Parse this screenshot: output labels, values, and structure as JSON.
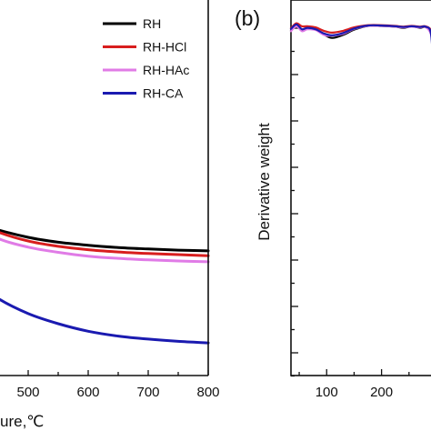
{
  "chart_data": [
    {
      "type": "line",
      "panel_label": "",
      "xlabel": "ure,℃",
      "ylabel": "",
      "xlim": [
        370,
        800
      ],
      "x_ticks": [
        500,
        600,
        700,
        800
      ],
      "legend_position": "top-right",
      "series": [
        {
          "name": "RH",
          "color": "#000000",
          "x": [
            370,
            400,
            450,
            500,
            550,
            600,
            650,
            700,
            750,
            800
          ],
          "y": [
            0.58,
            0.585,
            0.612,
            0.632,
            0.645,
            0.653,
            0.659,
            0.663,
            0.666,
            0.668
          ]
        },
        {
          "name": "RH-HCl",
          "color": "#d81e1e",
          "x": [
            370,
            400,
            450,
            500,
            550,
            600,
            650,
            700,
            750,
            800
          ],
          "y": [
            0.58,
            0.583,
            0.618,
            0.642,
            0.656,
            0.665,
            0.671,
            0.675,
            0.678,
            0.681
          ]
        },
        {
          "name": "RH-HAc",
          "color": "#e07be6",
          "x": [
            370,
            400,
            450,
            500,
            550,
            600,
            650,
            700,
            750,
            800
          ],
          "y": [
            0.58,
            0.592,
            0.635,
            0.658,
            0.672,
            0.682,
            0.688,
            0.692,
            0.695,
            0.697
          ]
        },
        {
          "name": "RH-CA",
          "color": "#1a1ab0",
          "x": [
            370,
            400,
            450,
            500,
            550,
            600,
            650,
            700,
            750,
            800
          ],
          "y": [
            0.72,
            0.735,
            0.795,
            0.835,
            0.862,
            0.882,
            0.895,
            0.903,
            0.909,
            0.913
          ]
        }
      ]
    },
    {
      "type": "line",
      "panel_label": "(b)",
      "xlabel": "",
      "ylabel": "Derivative weight",
      "xlim": [
        35,
        300
      ],
      "x_ticks": [
        100,
        200
      ],
      "grid": false,
      "series": [
        {
          "name": "RH",
          "color": "#000000",
          "x": [
            35,
            45,
            55,
            65,
            80,
            95,
            110,
            130,
            150,
            175,
            200,
            225,
            240,
            255,
            270,
            280,
            290,
            295,
            300
          ],
          "y": [
            0.082,
            0.067,
            0.08,
            0.077,
            0.079,
            0.092,
            0.101,
            0.093,
            0.079,
            0.069,
            0.069,
            0.071,
            0.074,
            0.07,
            0.074,
            0.072,
            0.087,
            0.15,
            0.2
          ]
        },
        {
          "name": "RH-HCl",
          "color": "#d81e1e",
          "x": [
            35,
            45,
            55,
            65,
            80,
            95,
            110,
            130,
            150,
            175,
            200,
            225,
            240,
            255,
            270,
            280,
            290,
            295,
            300
          ],
          "y": [
            0.075,
            0.062,
            0.07,
            0.07,
            0.073,
            0.082,
            0.087,
            0.082,
            0.073,
            0.067,
            0.067,
            0.069,
            0.071,
            0.069,
            0.071,
            0.07,
            0.081,
            0.12,
            0.14
          ]
        },
        {
          "name": "RH-HAc",
          "color": "#e07be6",
          "x": [
            35,
            45,
            55,
            65,
            80,
            95,
            110,
            130,
            150,
            175,
            200,
            225,
            240,
            255,
            270,
            280,
            290,
            295,
            300
          ],
          "y": [
            0.083,
            0.07,
            0.083,
            0.078,
            0.08,
            0.093,
            0.095,
            0.09,
            0.077,
            0.069,
            0.069,
            0.071,
            0.073,
            0.071,
            0.073,
            0.072,
            0.092,
            0.15,
            0.2
          ]
        },
        {
          "name": "RH-CA",
          "color": "#1a1ab0",
          "x": [
            35,
            45,
            55,
            65,
            80,
            95,
            110,
            130,
            150,
            175,
            200,
            225,
            240,
            255,
            270,
            280,
            290,
            295,
            300
          ],
          "y": [
            0.077,
            0.065,
            0.078,
            0.074,
            0.078,
            0.089,
            0.094,
            0.088,
            0.076,
            0.068,
            0.068,
            0.07,
            0.072,
            0.07,
            0.072,
            0.071,
            0.09,
            0.2,
            0.3
          ]
        }
      ]
    }
  ]
}
